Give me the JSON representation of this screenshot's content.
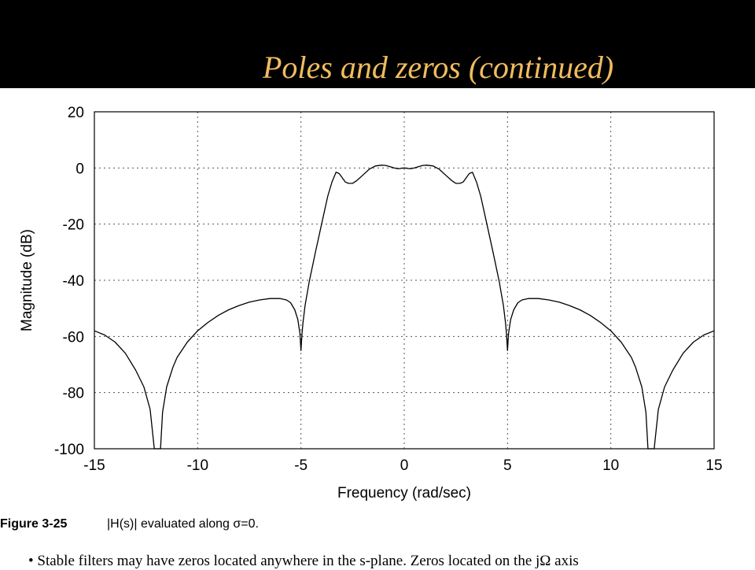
{
  "slide": {
    "title": "Poles and zeros (continued)",
    "colors": {
      "header_bg": "#000000",
      "title": "#f0bc60",
      "curve": "#000000",
      "grid": "#555555"
    }
  },
  "figure": {
    "caption_label": "Figure 3-25",
    "caption_text": "|H(s)| evaluated along σ=0."
  },
  "bullet": {
    "text": "• Stable filters may have zeros located anywhere in the s-plane. Zeros located on the jΩ axis"
  },
  "chart_data": {
    "type": "line",
    "xlabel": "Frequency (rad/sec)",
    "ylabel": "Magnitude (dB)",
    "xlim": [
      -15,
      15
    ],
    "ylim": [
      -100,
      20
    ],
    "xticks": [
      -15,
      -10,
      -5,
      0,
      5,
      10,
      15
    ],
    "yticks": [
      20,
      0,
      -20,
      -40,
      -60,
      -80,
      -100
    ],
    "grid": true,
    "series": [
      {
        "x": [
          -15,
          -14.5,
          -14,
          -13.5,
          -13,
          -12.6,
          -12.3,
          -12.1,
          -12.0,
          -11.9,
          -11.8,
          -11.7,
          -11.5,
          -11.2,
          -11,
          -10.5,
          -10,
          -9.5,
          -9,
          -8.5,
          -8,
          -7.5,
          -7,
          -6.5,
          -6,
          -5.7,
          -5.5,
          -5.3,
          -5.15,
          -5.05,
          -5.0,
          -4.95,
          -4.9,
          -4.8,
          -4.6,
          -4.3,
          -4,
          -3.7,
          -3.5,
          -3.3,
          -3.15,
          -3.05,
          -2.95,
          -2.85,
          -2.7,
          -2.5,
          -2.3,
          -2.0,
          -1.7,
          -1.4,
          -1.1,
          -0.9,
          -0.7,
          -0.5,
          -0.3,
          0,
          0.3,
          0.5,
          0.7,
          0.9,
          1.1,
          1.4,
          1.7,
          2.0,
          2.3,
          2.5,
          2.7,
          2.85,
          2.95,
          3.05,
          3.15,
          3.3,
          3.5,
          3.7,
          4,
          4.3,
          4.6,
          4.8,
          4.9,
          4.95,
          5.0,
          5.05,
          5.15,
          5.3,
          5.5,
          5.7,
          6,
          6.5,
          7,
          7.5,
          8,
          8.5,
          9,
          9.5,
          10,
          10.5,
          11,
          11.2,
          11.5,
          11.7,
          11.8,
          11.9,
          12.0,
          12.1,
          12.3,
          12.6,
          13,
          13.5,
          14,
          14.5,
          15
        ],
        "y": [
          -58,
          -59.5,
          -62,
          -66,
          -72,
          -78,
          -86,
          -100,
          -100,
          -100,
          -100,
          -87,
          -78,
          -71,
          -67.5,
          -62,
          -58,
          -55,
          -52.5,
          -50.5,
          -49,
          -47.8,
          -47,
          -46.5,
          -46.5,
          -47,
          -48,
          -50.5,
          -54,
          -59,
          -65,
          -59,
          -55,
          -49,
          -40.5,
          -30,
          -20,
          -10,
          -5,
          -1.5,
          -2,
          -3,
          -4,
          -5,
          -5.5,
          -5.5,
          -4.5,
          -2.5,
          -0.5,
          0.7,
          1,
          0.9,
          0.5,
          0,
          -0.3,
          0,
          -0.3,
          0,
          0.5,
          0.9,
          1,
          0.7,
          -0.5,
          -2.5,
          -4.5,
          -5.5,
          -5.5,
          -5,
          -4,
          -3,
          -2,
          -1.5,
          -5,
          -10,
          -20,
          -30,
          -40.5,
          -49,
          -55,
          -59,
          -65,
          -59,
          -54,
          -50.5,
          -48,
          -47,
          -46.5,
          -46.5,
          -47,
          -47.8,
          -49,
          -50.5,
          -52.5,
          -55,
          -58,
          -62,
          -67.5,
          -71,
          -78,
          -87,
          -100,
          -100,
          -100,
          -100,
          -86,
          -78,
          -72,
          -66,
          -62,
          -59.5,
          -58
        ]
      }
    ]
  }
}
